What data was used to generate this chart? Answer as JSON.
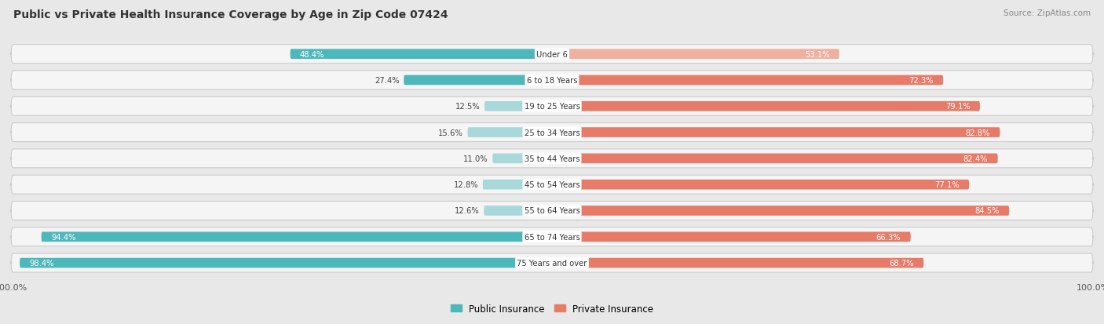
{
  "title": "Public vs Private Health Insurance Coverage by Age in Zip Code 07424",
  "source": "Source: ZipAtlas.com",
  "categories": [
    "Under 6",
    "6 to 18 Years",
    "19 to 25 Years",
    "25 to 34 Years",
    "35 to 44 Years",
    "45 to 54 Years",
    "55 to 64 Years",
    "65 to 74 Years",
    "75 Years and over"
  ],
  "public_values": [
    48.4,
    27.4,
    12.5,
    15.6,
    11.0,
    12.8,
    12.6,
    94.4,
    98.4
  ],
  "private_values": [
    53.1,
    72.3,
    79.1,
    82.8,
    82.4,
    77.1,
    84.5,
    66.3,
    68.7
  ],
  "public_color": "#4db8bc",
  "private_color": "#e87a68",
  "public_color_light": "#a8d8da",
  "private_color_light": "#f0b0a0",
  "bg_color": "#e8e8e8",
  "row_bg": "#f5f5f5",
  "row_border": "#d8d8d8",
  "figsize": [
    14.06,
    4.14
  ],
  "dpi": 100
}
